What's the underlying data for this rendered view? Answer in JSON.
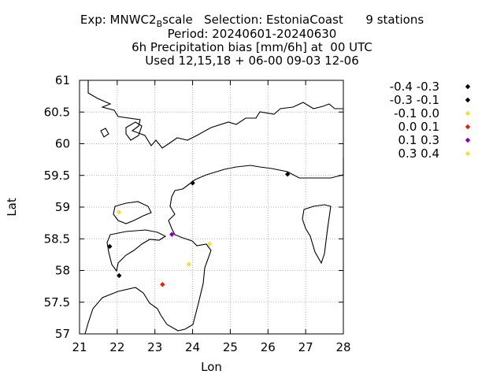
{
  "chart_data": {
    "type": "scatter",
    "title_lines": [
      "Exp: MNWC2",
      "Period: 20240601-20240630",
      "6h Precipitation bias [mm/6h] at  00 UTC",
      "Used 12,15,18 + 06-00 09-03 12-06"
    ],
    "title_exp_subscript": "B",
    "title_exp_rest": "scale   Selection: EstoniaCoast      9 stations",
    "xlabel": "Lon",
    "ylabel": "Lat",
    "xlim": [
      21,
      28
    ],
    "ylim": [
      57,
      61
    ],
    "xticks": [
      "21",
      "22",
      "23",
      "24",
      "25",
      "26",
      "27",
      "28"
    ],
    "yticks": [
      "57",
      "57.5",
      "58",
      "58.5",
      "59",
      "59.5",
      "60",
      "60.5",
      "61"
    ],
    "grid": true,
    "legend_position": "right",
    "legend": [
      {
        "label": "-0.4 -0.3",
        "color": "#000000"
      },
      {
        "label": "-0.3 -0.1",
        "color": "#000000"
      },
      {
        "label": "-0.1 0.0",
        "color": "#f0e040"
      },
      {
        "label": "0.0 0.1",
        "color": "#e02010"
      },
      {
        "label": "0.1 0.3",
        "color": "#8000c0"
      },
      {
        "label": "0.3 0.4",
        "color": "#f0e040"
      }
    ],
    "points": [
      {
        "lon": 24.0,
        "lat": 59.38,
        "color": "#000000"
      },
      {
        "lon": 26.52,
        "lat": 59.52,
        "color": "#000000"
      },
      {
        "lon": 22.05,
        "lat": 58.92,
        "color": "#f0e040"
      },
      {
        "lon": 21.8,
        "lat": 58.38,
        "color": "#000000"
      },
      {
        "lon": 23.45,
        "lat": 58.57,
        "color": "#8000c0"
      },
      {
        "lon": 24.45,
        "lat": 58.42,
        "color": "#f0e040"
      },
      {
        "lon": 23.9,
        "lat": 58.1,
        "color": "#f0e040"
      },
      {
        "lon": 22.05,
        "lat": 57.92,
        "color": "#000000"
      },
      {
        "lon": 23.2,
        "lat": 57.78,
        "color": "#e02010"
      }
    ]
  }
}
